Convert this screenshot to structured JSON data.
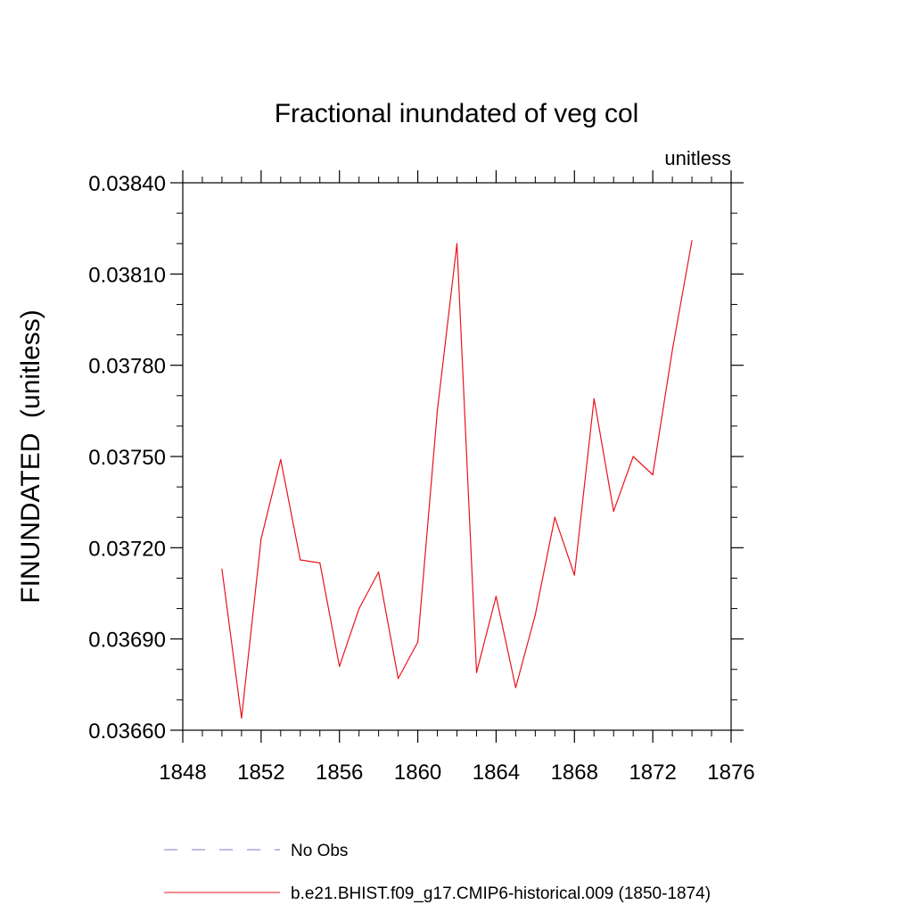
{
  "chart_data": {
    "type": "line",
    "title": "Fractional inundated of veg col",
    "units_label": "unitless",
    "ylabel": "FINUNDATED  (unitless)",
    "xlabel": "",
    "xlim": [
      1848,
      1876
    ],
    "ylim": [
      0.0366,
      0.0384
    ],
    "x_ticks": [
      1848,
      1852,
      1856,
      1860,
      1864,
      1868,
      1872,
      1876
    ],
    "x_tick_labels": [
      "1848",
      "1852",
      "1856",
      "1860",
      "1864",
      "1868",
      "1872",
      "1876"
    ],
    "y_ticks": [
      0.0366,
      0.0369,
      0.0372,
      0.0375,
      0.0378,
      0.0381,
      0.0384
    ],
    "y_tick_labels": [
      "0.03660",
      "0.03690",
      "0.03720",
      "0.03750",
      "0.03780",
      "0.03810",
      "0.03840"
    ],
    "grid": false,
    "series": [
      {
        "name": "b.e21.BHIST.f09_g17.CMIP6-historical.009 (1850-1874)",
        "color": "#e8141c",
        "style": "solid",
        "x": [
          1850,
          1851,
          1852,
          1853,
          1854,
          1855,
          1856,
          1857,
          1858,
          1859,
          1860,
          1861,
          1862,
          1863,
          1864,
          1865,
          1866,
          1867,
          1868,
          1869,
          1870,
          1871,
          1872,
          1873,
          1874
        ],
        "values": [
          0.03713,
          0.03664,
          0.03723,
          0.03749,
          0.03716,
          0.03715,
          0.03681,
          0.037,
          0.03712,
          0.03677,
          0.03689,
          0.03765,
          0.0382,
          0.03679,
          0.03704,
          0.03674,
          0.03698,
          0.0373,
          0.03711,
          0.03769,
          0.03732,
          0.0375,
          0.03744,
          0.03785,
          0.03821
        ]
      }
    ],
    "legend": [
      {
        "label": "No Obs",
        "color": "#7b7bd1",
        "style": "dashed"
      },
      {
        "label": "b.e21.BHIST.f09_g17.CMIP6-historical.009 (1850-1874)",
        "color": "#e8141c",
        "style": "solid"
      }
    ],
    "legend_position": "bottom"
  }
}
